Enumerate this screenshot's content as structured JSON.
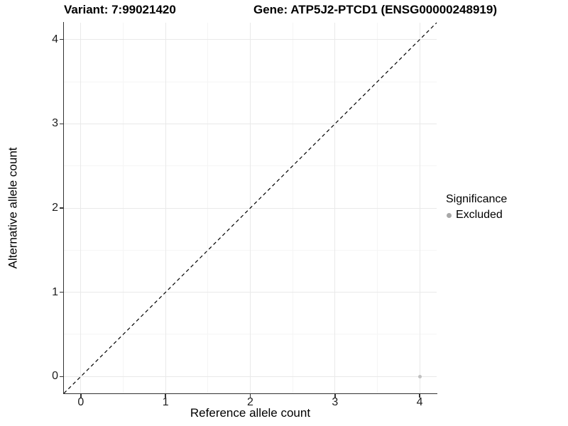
{
  "titles": {
    "variant": "Variant: 7:99021420",
    "gene": "Gene: ATP5J2-PTCD1 (ENSG00000248919)"
  },
  "axes": {
    "x_label": "Reference allele count",
    "y_label": "Alternative allele count"
  },
  "legend": {
    "title": "Significance",
    "items": [
      {
        "label": "Excluded",
        "color": "#a8a8a8"
      }
    ]
  },
  "colors": {
    "background": "#ffffff",
    "axis": "#333333",
    "grid_major": "#e9e9e9",
    "grid_minor": "#f5f5f5",
    "dashed_line": "#000000",
    "point": "#c0c0c0",
    "title_text": "#000000",
    "tick_text": "#1c1c1c"
  },
  "chart_data": {
    "type": "scatter",
    "title": "Variant: 7:99021420   Gene: ATP5J2-PTCD1 (ENSG00000248919)",
    "xlabel": "Reference allele count",
    "ylabel": "Alternative allele count",
    "xlim": [
      -0.2,
      4.2
    ],
    "ylim": [
      -0.2,
      4.2
    ],
    "x_ticks": [
      0,
      1,
      2,
      3,
      4
    ],
    "y_ticks": [
      0,
      1,
      2,
      3,
      4
    ],
    "grid": "major and minor, light grey on white",
    "legend_position": "right",
    "series": [
      {
        "name": "Excluded",
        "color": "#c0c0c0",
        "points": [
          {
            "x": 4,
            "y": 0
          }
        ]
      }
    ],
    "reference_line": {
      "kind": "identity y=x",
      "style": "dashed",
      "color": "#000000",
      "from": [
        -0.2,
        -0.2
      ],
      "to": [
        4.2,
        4.2
      ]
    }
  }
}
